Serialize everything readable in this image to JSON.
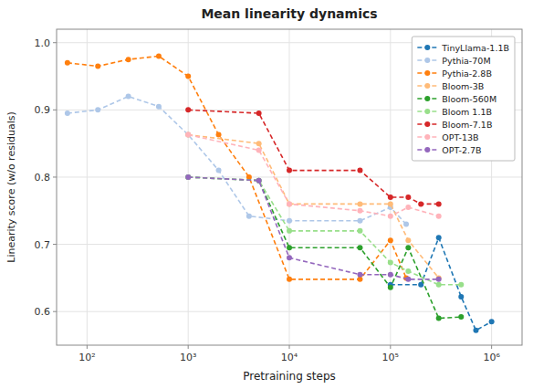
{
  "chart_data": {
    "type": "line",
    "title": "Mean linearity dynamics",
    "xlabel": "Pretraining steps",
    "ylabel": "Linearity score (w/o residuals)",
    "log": "x",
    "xlim": [
      50,
      2000000
    ],
    "xticks": [
      {
        "value": 100,
        "label": "10²"
      },
      {
        "value": 1000,
        "label": "10³"
      },
      {
        "value": 10000,
        "label": "10⁴"
      },
      {
        "value": 100000,
        "label": "10⁵"
      },
      {
        "value": 1000000,
        "label": "10⁶"
      }
    ],
    "ylim": [
      0.55,
      1.02
    ],
    "yticks": [
      0.6,
      0.7,
      0.8,
      0.9,
      {
        "value": 1,
        "label": "1.0"
      }
    ],
    "grid": true,
    "legend": "upper right",
    "marker": "circle",
    "line_style": "dashed",
    "series": [
      {
        "name": "TinyLlama-1.1B",
        "color": "#1f77b4",
        "x": [
          100000,
          200000,
          300000,
          500000,
          700000,
          1000000
        ],
        "values": [
          0.64,
          0.64,
          0.71,
          0.622,
          0.572,
          0.585
        ]
      },
      {
        "name": "Pythia-70M",
        "color": "#aec7e8",
        "x": [
          64,
          128,
          256,
          512,
          1000,
          2000,
          4000,
          10000,
          50000,
          100000,
          143000
        ],
        "values": [
          0.895,
          0.9,
          0.92,
          0.905,
          0.863,
          0.81,
          0.742,
          0.735,
          0.735,
          0.755,
          0.73
        ]
      },
      {
        "name": "Pythia-2.8B",
        "color": "#ff7f0e",
        "x": [
          64,
          128,
          256,
          512,
          1000,
          2000,
          4000,
          10000,
          50000,
          100000,
          143000
        ],
        "values": [
          0.97,
          0.965,
          0.975,
          0.98,
          0.95,
          0.863,
          0.8,
          0.648,
          0.648,
          0.706,
          0.65
        ]
      },
      {
        "name": "Bloom-3B",
        "color": "#ffbb78",
        "x": [
          1000,
          5000,
          10000,
          50000,
          100000,
          150000,
          300000
        ],
        "values": [
          0.863,
          0.85,
          0.76,
          0.76,
          0.76,
          0.706,
          0.65
        ]
      },
      {
        "name": "Bloom-560M",
        "color": "#2ca02c",
        "x": [
          1000,
          5000,
          10000,
          50000,
          100000,
          150000,
          300000,
          500000
        ],
        "values": [
          0.8,
          0.795,
          0.695,
          0.695,
          0.636,
          0.695,
          0.59,
          0.592
        ]
      },
      {
        "name": "Bloom 1.1B",
        "color": "#98df8a",
        "x": [
          1000,
          5000,
          10000,
          50000,
          100000,
          150000,
          300000,
          500000
        ],
        "values": [
          0.8,
          0.795,
          0.72,
          0.72,
          0.673,
          0.66,
          0.64,
          0.64
        ]
      },
      {
        "name": "Bloom-7.1B",
        "color": "#d62728",
        "x": [
          1000,
          5000,
          10000,
          50000,
          100000,
          150000,
          200000,
          300000
        ],
        "values": [
          0.9,
          0.895,
          0.81,
          0.81,
          0.77,
          0.77,
          0.76,
          0.76
        ]
      },
      {
        "name": "OPT-13B",
        "color": "#ffb3ba",
        "x": [
          1000,
          5000,
          10000,
          50000,
          100000,
          150000,
          300000
        ],
        "values": [
          0.863,
          0.84,
          0.76,
          0.75,
          0.742,
          0.755,
          0.742
        ]
      },
      {
        "name": "OPT-2.7B",
        "color": "#9467bd",
        "x": [
          1000,
          5000,
          10000,
          50000,
          100000,
          150000,
          300000
        ],
        "values": [
          0.8,
          0.795,
          0.68,
          0.655,
          0.655,
          0.648,
          0.648
        ]
      }
    ]
  }
}
